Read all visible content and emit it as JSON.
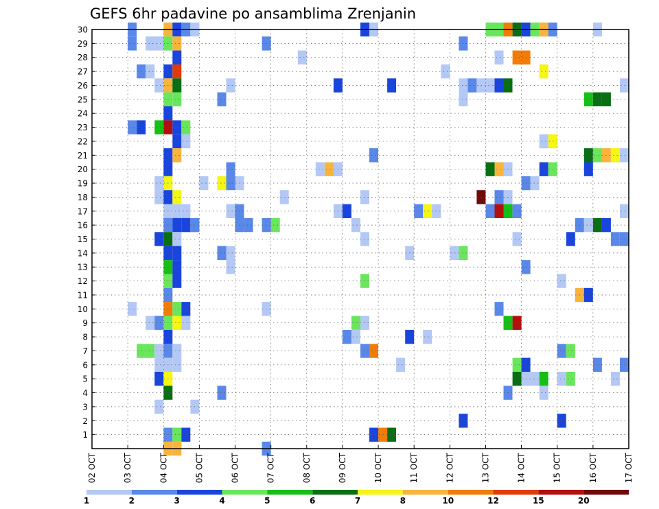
{
  "chart_data": {
    "type": "heatmap",
    "title": "GEFS 6hr padavine po ansamblima Zrenjanin",
    "y_ticks": [
      "1",
      "2",
      "3",
      "4",
      "5",
      "6",
      "7",
      "8",
      "9",
      "10",
      "11",
      "12",
      "13",
      "14",
      "15",
      "16",
      "17",
      "18",
      "19",
      "20",
      "21",
      "22",
      "23",
      "24",
      "25",
      "26",
      "27",
      "28",
      "29",
      "30"
    ],
    "x_ticks": [
      "02 OCT",
      "03 OCT",
      "04 OCT",
      "05 OCT",
      "06 OCT",
      "07 OCT",
      "08 OCT",
      "09 OCT",
      "10 OCT",
      "11 OCT",
      "12 OCT",
      "13 OCT",
      "14 OCT",
      "15 OCT",
      "16 OCT",
      "17 OCT"
    ],
    "x_range_days": [
      0,
      15
    ],
    "y_range": [
      0,
      30
    ],
    "grid": true,
    "legend_position": "bottom",
    "legend_labels": [
      "1",
      "2",
      "3",
      "4",
      "5",
      "6",
      "7",
      "8",
      "10",
      "12",
      "15",
      "20"
    ],
    "color_levels": [
      {
        "from": 1,
        "color": "#b3c8f5"
      },
      {
        "from": 2,
        "color": "#5a88e8"
      },
      {
        "from": 3,
        "color": "#1a45dc"
      },
      {
        "from": 4,
        "color": "#6ae65c"
      },
      {
        "from": 5,
        "color": "#16be16"
      },
      {
        "from": 6,
        "color": "#0a6e14"
      },
      {
        "from": 7,
        "color": "#f5f516"
      },
      {
        "from": 8,
        "color": "#f8b43c"
      },
      {
        "from": 10,
        "color": "#f07d0a"
      },
      {
        "from": 12,
        "color": "#e03c0a"
      },
      {
        "from": 15,
        "color": "#b40f0f"
      },
      {
        "from": 20,
        "color": "#6e0a0a"
      }
    ],
    "cells": [
      {
        "member": 30,
        "t": 1.0,
        "v": 2
      },
      {
        "member": 30,
        "t": 2.0,
        "v": 8
      },
      {
        "member": 30,
        "t": 2.25,
        "v": 3
      },
      {
        "member": 30,
        "t": 2.5,
        "v": 2
      },
      {
        "member": 30,
        "t": 2.75,
        "v": 1
      },
      {
        "member": 30,
        "t": 7.5,
        "v": 3
      },
      {
        "member": 30,
        "t": 7.75,
        "v": 1
      },
      {
        "member": 30,
        "t": 11.0,
        "v": 4
      },
      {
        "member": 30,
        "t": 11.25,
        "v": 4
      },
      {
        "member": 30,
        "t": 11.5,
        "v": 10
      },
      {
        "member": 30,
        "t": 11.75,
        "v": 6
      },
      {
        "member": 30,
        "t": 12.0,
        "v": 3
      },
      {
        "member": 30,
        "t": 12.25,
        "v": 4
      },
      {
        "member": 30,
        "t": 12.5,
        "v": 8
      },
      {
        "member": 30,
        "t": 12.75,
        "v": 2
      },
      {
        "member": 30,
        "t": 14.0,
        "v": 1
      },
      {
        "member": 29,
        "t": 1.0,
        "v": 2
      },
      {
        "member": 29,
        "t": 1.5,
        "v": 1
      },
      {
        "member": 29,
        "t": 1.75,
        "v": 1
      },
      {
        "member": 29,
        "t": 2.0,
        "v": 4
      },
      {
        "member": 29,
        "t": 2.25,
        "v": 8
      },
      {
        "member": 29,
        "t": 4.75,
        "v": 2
      },
      {
        "member": 29,
        "t": 10.25,
        "v": 2
      },
      {
        "member": 28,
        "t": 2.25,
        "v": 3
      },
      {
        "member": 28,
        "t": 5.75,
        "v": 1
      },
      {
        "member": 28,
        "t": 11.25,
        "v": 1
      },
      {
        "member": 28,
        "t": 11.75,
        "v": 10
      },
      {
        "member": 28,
        "t": 12.0,
        "v": 10
      },
      {
        "member": 27,
        "t": 1.25,
        "v": 2
      },
      {
        "member": 27,
        "t": 1.5,
        "v": 1
      },
      {
        "member": 27,
        "t": 2.0,
        "v": 3
      },
      {
        "member": 27,
        "t": 2.25,
        "v": 12
      },
      {
        "member": 27,
        "t": 9.75,
        "v": 1
      },
      {
        "member": 27,
        "t": 12.5,
        "v": 7
      },
      {
        "member": 26,
        "t": 1.75,
        "v": 1
      },
      {
        "member": 26,
        "t": 2.0,
        "v": 8
      },
      {
        "member": 26,
        "t": 2.25,
        "v": 6
      },
      {
        "member": 26,
        "t": 3.75,
        "v": 1
      },
      {
        "member": 26,
        "t": 6.75,
        "v": 3
      },
      {
        "member": 26,
        "t": 8.25,
        "v": 3
      },
      {
        "member": 26,
        "t": 10.25,
        "v": 1
      },
      {
        "member": 26,
        "t": 10.5,
        "v": 2
      },
      {
        "member": 26,
        "t": 10.75,
        "v": 1
      },
      {
        "member": 26,
        "t": 11.0,
        "v": 1
      },
      {
        "member": 26,
        "t": 11.25,
        "v": 3
      },
      {
        "member": 26,
        "t": 11.5,
        "v": 6
      },
      {
        "member": 26,
        "t": 14.75,
        "v": 1
      },
      {
        "member": 25,
        "t": 2.0,
        "v": 4
      },
      {
        "member": 25,
        "t": 2.25,
        "v": 4
      },
      {
        "member": 25,
        "t": 3.5,
        "v": 2
      },
      {
        "member": 25,
        "t": 10.25,
        "v": 1
      },
      {
        "member": 25,
        "t": 13.75,
        "v": 5
      },
      {
        "member": 25,
        "t": 14.0,
        "v": 6
      },
      {
        "member": 25,
        "t": 14.25,
        "v": 6
      },
      {
        "member": 24,
        "t": 2.0,
        "v": 3
      },
      {
        "member": 23,
        "t": 1.0,
        "v": 2
      },
      {
        "member": 23,
        "t": 1.25,
        "v": 3
      },
      {
        "member": 23,
        "t": 1.75,
        "v": 5
      },
      {
        "member": 23,
        "t": 2.0,
        "v": 15
      },
      {
        "member": 23,
        "t": 2.25,
        "v": 3
      },
      {
        "member": 23,
        "t": 2.5,
        "v": 4
      },
      {
        "member": 22,
        "t": 2.25,
        "v": 3
      },
      {
        "member": 22,
        "t": 2.5,
        "v": 1
      },
      {
        "member": 22,
        "t": 12.5,
        "v": 1
      },
      {
        "member": 22,
        "t": 12.75,
        "v": 7
      },
      {
        "member": 21,
        "t": 2.0,
        "v": 3
      },
      {
        "member": 21,
        "t": 2.25,
        "v": 8
      },
      {
        "member": 21,
        "t": 7.75,
        "v": 2
      },
      {
        "member": 21,
        "t": 13.75,
        "v": 6
      },
      {
        "member": 21,
        "t": 14.0,
        "v": 4
      },
      {
        "member": 21,
        "t": 14.25,
        "v": 8
      },
      {
        "member": 21,
        "t": 14.5,
        "v": 7
      },
      {
        "member": 21,
        "t": 14.75,
        "v": 1
      },
      {
        "member": 20,
        "t": 2.0,
        "v": 3
      },
      {
        "member": 20,
        "t": 3.75,
        "v": 2
      },
      {
        "member": 20,
        "t": 6.25,
        "v": 1
      },
      {
        "member": 20,
        "t": 6.5,
        "v": 8
      },
      {
        "member": 20,
        "t": 6.75,
        "v": 1
      },
      {
        "member": 20,
        "t": 11.0,
        "v": 6
      },
      {
        "member": 20,
        "t": 11.25,
        "v": 8
      },
      {
        "member": 20,
        "t": 11.5,
        "v": 1
      },
      {
        "member": 20,
        "t": 12.5,
        "v": 3
      },
      {
        "member": 20,
        "t": 12.75,
        "v": 4
      },
      {
        "member": 20,
        "t": 13.75,
        "v": 3
      },
      {
        "member": 19,
        "t": 1.75,
        "v": 1
      },
      {
        "member": 19,
        "t": 2.0,
        "v": 7
      },
      {
        "member": 19,
        "t": 3.0,
        "v": 1
      },
      {
        "member": 19,
        "t": 3.5,
        "v": 7
      },
      {
        "member": 19,
        "t": 3.75,
        "v": 2
      },
      {
        "member": 19,
        "t": 4.0,
        "v": 1
      },
      {
        "member": 19,
        "t": 12.0,
        "v": 2
      },
      {
        "member": 19,
        "t": 12.25,
        "v": 1
      },
      {
        "member": 18,
        "t": 1.75,
        "v": 1
      },
      {
        "member": 18,
        "t": 2.0,
        "v": 3
      },
      {
        "member": 18,
        "t": 2.25,
        "v": 7
      },
      {
        "member": 18,
        "t": 5.25,
        "v": 1
      },
      {
        "member": 18,
        "t": 7.5,
        "v": 1
      },
      {
        "member": 18,
        "t": 10.75,
        "v": 20
      },
      {
        "member": 18,
        "t": 11.25,
        "v": 2
      },
      {
        "member": 18,
        "t": 11.5,
        "v": 1
      },
      {
        "member": 17,
        "t": 2.0,
        "v": 1
      },
      {
        "member": 17,
        "t": 2.25,
        "v": 1
      },
      {
        "member": 17,
        "t": 2.5,
        "v": 1
      },
      {
        "member": 17,
        "t": 3.75,
        "v": 1
      },
      {
        "member": 17,
        "t": 4.0,
        "v": 2
      },
      {
        "member": 17,
        "t": 6.75,
        "v": 1
      },
      {
        "member": 17,
        "t": 7.0,
        "v": 3
      },
      {
        "member": 17,
        "t": 9.0,
        "v": 2
      },
      {
        "member": 17,
        "t": 9.25,
        "v": 7
      },
      {
        "member": 17,
        "t": 9.5,
        "v": 1
      },
      {
        "member": 17,
        "t": 11.0,
        "v": 2
      },
      {
        "member": 17,
        "t": 11.25,
        "v": 15
      },
      {
        "member": 17,
        "t": 11.5,
        "v": 5
      },
      {
        "member": 17,
        "t": 11.75,
        "v": 2
      },
      {
        "member": 17,
        "t": 14.75,
        "v": 1
      },
      {
        "member": 16,
        "t": 2.0,
        "v": 2
      },
      {
        "member": 16,
        "t": 2.25,
        "v": 3
      },
      {
        "member": 16,
        "t": 2.5,
        "v": 3
      },
      {
        "member": 16,
        "t": 2.75,
        "v": 2
      },
      {
        "member": 16,
        "t": 4.0,
        "v": 2
      },
      {
        "member": 16,
        "t": 4.25,
        "v": 2
      },
      {
        "member": 16,
        "t": 4.75,
        "v": 2
      },
      {
        "member": 16,
        "t": 5.0,
        "v": 4
      },
      {
        "member": 16,
        "t": 7.25,
        "v": 1
      },
      {
        "member": 16,
        "t": 13.5,
        "v": 2
      },
      {
        "member": 16,
        "t": 13.75,
        "v": 1
      },
      {
        "member": 16,
        "t": 14.0,
        "v": 6
      },
      {
        "member": 16,
        "t": 14.25,
        "v": 3
      },
      {
        "member": 15,
        "t": 1.75,
        "v": 3
      },
      {
        "member": 15,
        "t": 2.0,
        "v": 6
      },
      {
        "member": 15,
        "t": 2.25,
        "v": 1
      },
      {
        "member": 15,
        "t": 7.5,
        "v": 1
      },
      {
        "member": 15,
        "t": 11.75,
        "v": 1
      },
      {
        "member": 15,
        "t": 13.25,
        "v": 3
      },
      {
        "member": 15,
        "t": 14.5,
        "v": 2
      },
      {
        "member": 15,
        "t": 14.75,
        "v": 2
      },
      {
        "member": 14,
        "t": 2.0,
        "v": 3
      },
      {
        "member": 14,
        "t": 2.25,
        "v": 3
      },
      {
        "member": 14,
        "t": 3.5,
        "v": 2
      },
      {
        "member": 14,
        "t": 3.75,
        "v": 1
      },
      {
        "member": 14,
        "t": 8.75,
        "v": 1
      },
      {
        "member": 14,
        "t": 10.0,
        "v": 1
      },
      {
        "member": 14,
        "t": 10.25,
        "v": 4
      },
      {
        "member": 13,
        "t": 2.0,
        "v": 5
      },
      {
        "member": 13,
        "t": 2.25,
        "v": 3
      },
      {
        "member": 13,
        "t": 3.75,
        "v": 1
      },
      {
        "member": 13,
        "t": 12.0,
        "v": 2
      },
      {
        "member": 12,
        "t": 2.0,
        "v": 4
      },
      {
        "member": 12,
        "t": 2.25,
        "v": 3
      },
      {
        "member": 12,
        "t": 7.5,
        "v": 4
      },
      {
        "member": 12,
        "t": 13.0,
        "v": 1
      },
      {
        "member": 11,
        "t": 2.0,
        "v": 2
      },
      {
        "member": 11,
        "t": 13.5,
        "v": 8
      },
      {
        "member": 11,
        "t": 13.75,
        "v": 3
      },
      {
        "member": 10,
        "t": 1.0,
        "v": 1
      },
      {
        "member": 10,
        "t": 2.0,
        "v": 10
      },
      {
        "member": 10,
        "t": 2.25,
        "v": 4
      },
      {
        "member": 10,
        "t": 2.5,
        "v": 3
      },
      {
        "member": 10,
        "t": 4.75,
        "v": 1
      },
      {
        "member": 10,
        "t": 11.25,
        "v": 2
      },
      {
        "member": 9,
        "t": 1.5,
        "v": 1
      },
      {
        "member": 9,
        "t": 1.75,
        "v": 2
      },
      {
        "member": 9,
        "t": 2.0,
        "v": 4
      },
      {
        "member": 9,
        "t": 2.25,
        "v": 7
      },
      {
        "member": 9,
        "t": 2.5,
        "v": 1
      },
      {
        "member": 9,
        "t": 7.25,
        "v": 4
      },
      {
        "member": 9,
        "t": 7.5,
        "v": 1
      },
      {
        "member": 9,
        "t": 11.5,
        "v": 5
      },
      {
        "member": 9,
        "t": 11.75,
        "v": 15
      },
      {
        "member": 8,
        "t": 2.0,
        "v": 3
      },
      {
        "member": 8,
        "t": 7.0,
        "v": 2
      },
      {
        "member": 8,
        "t": 7.25,
        "v": 1
      },
      {
        "member": 8,
        "t": 8.75,
        "v": 3
      },
      {
        "member": 8,
        "t": 9.25,
        "v": 1
      },
      {
        "member": 7,
        "t": 1.25,
        "v": 4
      },
      {
        "member": 7,
        "t": 1.5,
        "v": 4
      },
      {
        "member": 7,
        "t": 1.75,
        "v": 1
      },
      {
        "member": 7,
        "t": 2.0,
        "v": 2
      },
      {
        "member": 7,
        "t": 2.25,
        "v": 1
      },
      {
        "member": 7,
        "t": 7.5,
        "v": 2
      },
      {
        "member": 7,
        "t": 7.75,
        "v": 10
      },
      {
        "member": 7,
        "t": 13.0,
        "v": 2
      },
      {
        "member": 7,
        "t": 13.25,
        "v": 4
      },
      {
        "member": 6,
        "t": 1.75,
        "v": 1
      },
      {
        "member": 6,
        "t": 2.0,
        "v": 1
      },
      {
        "member": 6,
        "t": 2.25,
        "v": 1
      },
      {
        "member": 6,
        "t": 8.5,
        "v": 1
      },
      {
        "member": 6,
        "t": 11.75,
        "v": 4
      },
      {
        "member": 6,
        "t": 12.0,
        "v": 3
      },
      {
        "member": 6,
        "t": 14.0,
        "v": 2
      },
      {
        "member": 6,
        "t": 14.75,
        "v": 2
      },
      {
        "member": 5,
        "t": 1.75,
        "v": 3
      },
      {
        "member": 5,
        "t": 2.0,
        "v": 7
      },
      {
        "member": 5,
        "t": 11.75,
        "v": 6
      },
      {
        "member": 5,
        "t": 12.0,
        "v": 1
      },
      {
        "member": 5,
        "t": 12.25,
        "v": 1
      },
      {
        "member": 5,
        "t": 12.5,
        "v": 5
      },
      {
        "member": 5,
        "t": 13.0,
        "v": 1
      },
      {
        "member": 5,
        "t": 13.25,
        "v": 4
      },
      {
        "member": 5,
        "t": 14.5,
        "v": 1
      },
      {
        "member": 4,
        "t": 2.0,
        "v": 6
      },
      {
        "member": 4,
        "t": 3.5,
        "v": 2
      },
      {
        "member": 4,
        "t": 11.5,
        "v": 2
      },
      {
        "member": 4,
        "t": 12.5,
        "v": 1
      },
      {
        "member": 3,
        "t": 1.75,
        "v": 1
      },
      {
        "member": 3,
        "t": 2.75,
        "v": 1
      },
      {
        "member": 2,
        "t": 10.25,
        "v": 3
      },
      {
        "member": 2,
        "t": 13.0,
        "v": 3
      },
      {
        "member": 1,
        "t": 2.0,
        "v": 2
      },
      {
        "member": 1,
        "t": 2.25,
        "v": 4
      },
      {
        "member": 1,
        "t": 2.5,
        "v": 3
      },
      {
        "member": 1,
        "t": 7.75,
        "v": 3
      },
      {
        "member": 1,
        "t": 8.0,
        "v": 10
      },
      {
        "member": 1,
        "t": 8.25,
        "v": 6
      },
      {
        "member": 0,
        "t": 2.0,
        "v": 8
      },
      {
        "member": 0,
        "t": 2.25,
        "v": 8
      },
      {
        "member": 0,
        "t": 4.75,
        "v": 2
      }
    ]
  }
}
